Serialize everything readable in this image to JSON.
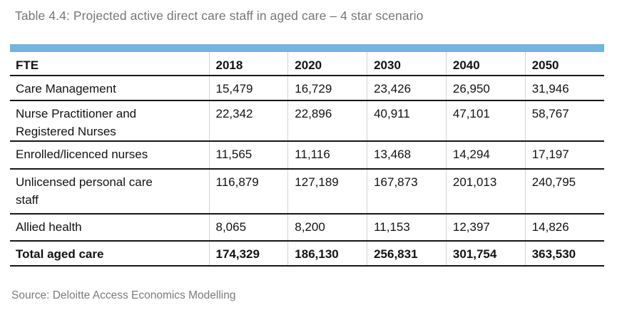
{
  "title": "Table 4.4: Projected active direct care staff in aged care – 4 star scenario",
  "source": "Source: Deloitte Access Economics Modelling",
  "colors": {
    "accent_bar": "#72B5DF",
    "title_text": "#767676",
    "rule": "#161616"
  },
  "chart_data": {
    "type": "table",
    "title": "Table 4.4: Projected active direct care staff in aged care – 4 star scenario",
    "columns": [
      "FTE",
      "2018",
      "2020",
      "2030",
      "2040",
      "2050"
    ],
    "rows": [
      {
        "label": "Care Management",
        "values": [
          "15,479",
          "16,729",
          "23,426",
          "26,950",
          "31,946"
        ],
        "bold": false
      },
      {
        "label": "Nurse Practitioner and\nRegistered Nurses",
        "values": [
          "22,342",
          "22,896",
          "40,911",
          "47,101",
          "58,767"
        ],
        "bold": false
      },
      {
        "label": "Enrolled/licenced nurses",
        "values": [
          "11,565",
          "11,116",
          "13,468",
          "14,294",
          "17,197"
        ],
        "bold": false
      },
      {
        "label": "Unlicensed personal care\nstaff",
        "values": [
          "116,879",
          "127,189",
          "167,873",
          "201,013",
          "240,795"
        ],
        "bold": false
      },
      {
        "label": "Allied health",
        "values": [
          "8,065",
          "8,200",
          "11,153",
          "12,397",
          "14,826"
        ],
        "bold": false
      },
      {
        "label": "Total aged care",
        "values": [
          "174,329",
          "186,130",
          "256,831",
          "301,754",
          "363,530"
        ],
        "bold": true
      }
    ]
  }
}
